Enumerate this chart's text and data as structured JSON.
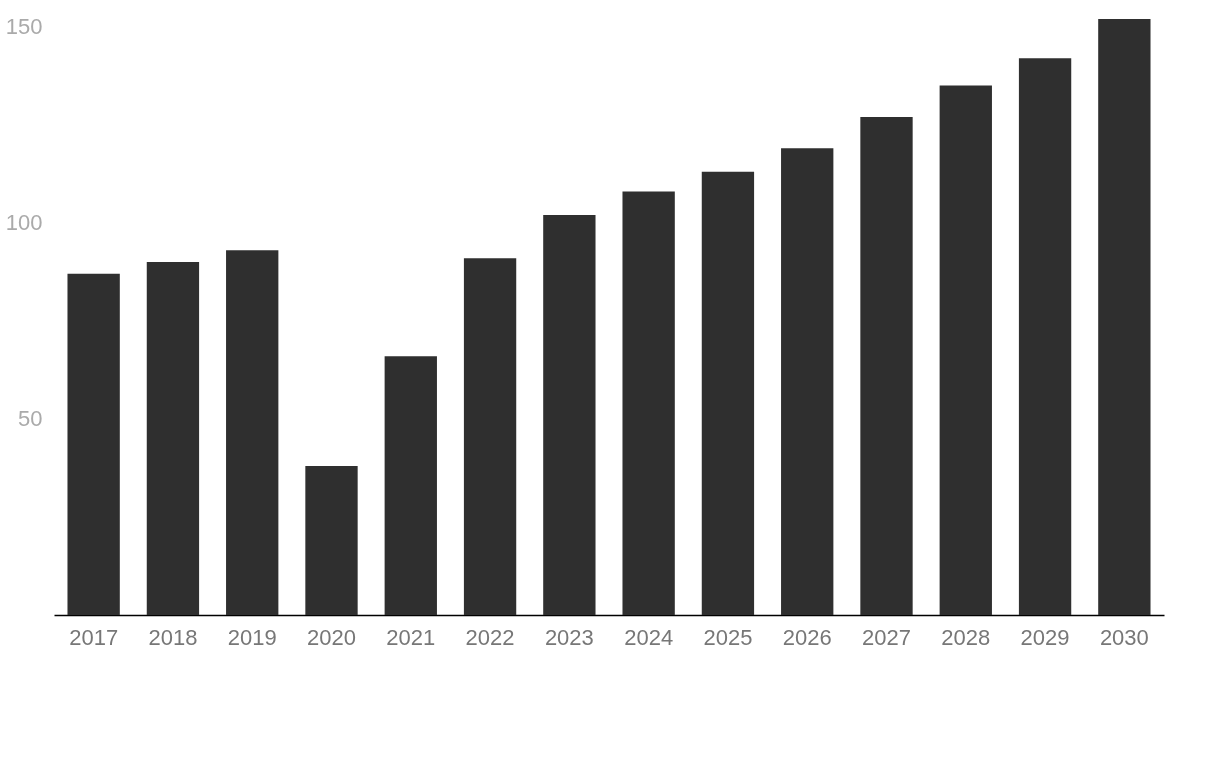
{
  "chart_data": {
    "type": "bar",
    "categories": [
      "2017",
      "2018",
      "2019",
      "2020",
      "2021",
      "2022",
      "2023",
      "2024",
      "2025",
      "2026",
      "2027",
      "2028",
      "2029",
      "2030"
    ],
    "values": [
      87,
      90,
      93,
      38,
      66,
      91,
      102,
      108,
      113,
      119,
      127,
      135,
      142,
      152
    ],
    "color": "#2f2f2f",
    "ylim": [
      0,
      153
    ],
    "yticks": [
      50,
      100,
      150
    ],
    "grid": false
  }
}
